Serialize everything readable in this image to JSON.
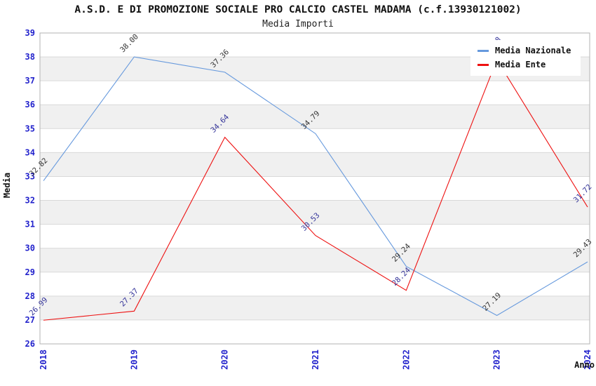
{
  "chart_data": {
    "type": "line",
    "title": "A.S.D. E DI PROMOZIONE SOCIALE PRO CALCIO CASTEL MADAMA (c.f.13930121002)",
    "subtitle": "Media Importi",
    "xlabel": "Anno",
    "ylabel": "Media",
    "categories": [
      "2018",
      "2019",
      "2020",
      "2021",
      "2022",
      "2023",
      "2024"
    ],
    "ylim": [
      26,
      39
    ],
    "yticks": [
      26,
      27,
      28,
      29,
      30,
      31,
      32,
      33,
      34,
      35,
      36,
      37,
      38,
      39
    ],
    "grid": "horizontal-bands",
    "legend_position": "top-right",
    "band_colors": [
      "#ffffff",
      "#f0f0f0"
    ],
    "gridline_color": "#d9d9d9",
    "border_color": "#b3b3b3",
    "tick_color": "#2222cc",
    "series": [
      {
        "name": "Media Nazionale",
        "color": "#6699dd",
        "label_color": "#333333",
        "values": [
          32.82,
          38.0,
          37.36,
          34.79,
          29.24,
          27.19,
          29.43
        ],
        "labels": [
          "32.82",
          "38.00",
          "37.36",
          "34.79",
          "29.24",
          "27.19",
          "29.43"
        ]
      },
      {
        "name": "Media Ente",
        "color": "#ee1111",
        "label_color": "#333399",
        "values": [
          26.99,
          27.37,
          34.64,
          30.53,
          28.24,
          37.88,
          31.72
        ],
        "labels": [
          "26.99",
          "27.37",
          "34.64",
          "30.53",
          "28.24",
          "37.88",
          "31.72"
        ]
      }
    ]
  }
}
